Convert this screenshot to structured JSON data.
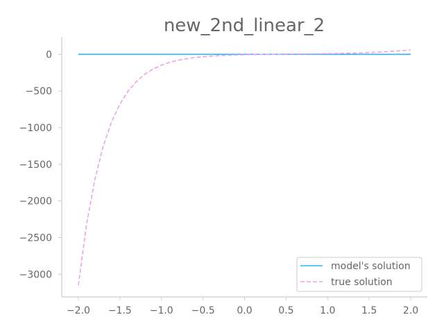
{
  "chart_data": {
    "type": "line",
    "title": "new_2nd_linear_2",
    "xlabel": "",
    "ylabel": "",
    "xlim": [
      -2.2,
      2.2
    ],
    "ylim": [
      -3310,
      240
    ],
    "x_ticks": [
      -2.0,
      -1.5,
      -1.0,
      -0.5,
      0.0,
      0.5,
      1.0,
      1.5,
      2.0
    ],
    "x_tick_labels": [
      "−2.0",
      "−1.5",
      "−1.0",
      "−0.5",
      "0.0",
      "0.5",
      "1.0",
      "1.5",
      "2.0"
    ],
    "y_ticks": [
      0,
      -500,
      -1000,
      -1500,
      -2000,
      -2500,
      -3000
    ],
    "y_tick_labels": [
      "0",
      "−500",
      "−1000",
      "−1500",
      "−2000",
      "−2500",
      "−3000"
    ],
    "grid": false,
    "legend_position": "lower-right",
    "series": [
      {
        "name": "model's solution",
        "color": "#29b6f6",
        "style": "solid",
        "x": [
          -2.0,
          -1.5,
          -1.0,
          -0.5,
          0.0,
          0.5,
          1.0,
          1.5,
          2.0
        ],
        "y": [
          0,
          0,
          0,
          0,
          0,
          0,
          0,
          0,
          0
        ]
      },
      {
        "name": "true solution",
        "color": "#f0a0ea",
        "style": "dashed",
        "x": [
          -2.0,
          -1.9,
          -1.8,
          -1.7,
          -1.6,
          -1.5,
          -1.4,
          -1.3,
          -1.2,
          -1.1,
          -1.0,
          -0.9,
          -0.8,
          -0.6,
          -0.4,
          -0.2,
          0.0,
          0.2,
          0.4,
          0.6,
          0.8,
          1.0,
          1.2,
          1.4,
          1.6,
          1.8,
          2.0
        ],
        "y": [
          -3150,
          -2310,
          -1700,
          -1250,
          -920,
          -680,
          -500,
          -370,
          -270,
          -200,
          -148,
          -109,
          -80,
          -43,
          -23,
          -12,
          -5,
          0,
          2,
          4,
          6,
          9,
          14,
          20,
          30,
          43,
          60
        ]
      }
    ]
  }
}
